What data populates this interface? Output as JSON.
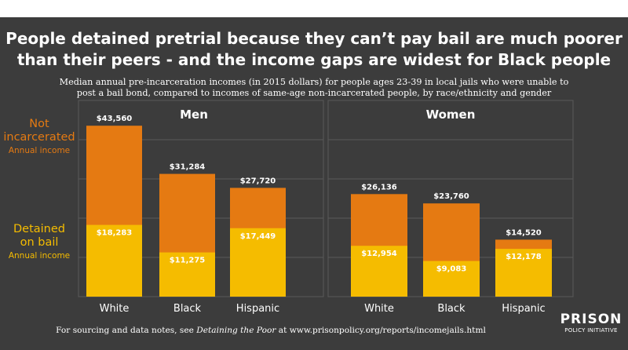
{
  "title_lines": [
    "People detained pretrial because they can’t pay bail are much poorer",
    "than their peers - and the income gaps are widest for Black people"
  ],
  "subtitle_lines": [
    "Median annual pre-incarceration incomes (in 2015 dollars) for people ages 23-39 in local jails who were unable to",
    "post a bail bond, compared to incomes of same-age non-incarcerated people, by race/ethnicity  and gender"
  ],
  "legend": {
    "not_incarcerated": {
      "line1": "Not",
      "line2": "incarcerated",
      "sub": "Annual income"
    },
    "detained": {
      "line1": "Detained",
      "line2": "on bail",
      "sub": "Annual income"
    }
  },
  "footnote": {
    "before": "For sourcing and data notes, see ",
    "italic": "Detaining the Poor",
    "after": " at www.prisonpolicy.org/reports/incomejails.html"
  },
  "logo": {
    "line1": "PRISON",
    "line2": "POLICY INITIATIVE"
  },
  "colors": {
    "not_incarcerated": "#e57a12",
    "detained": "#f5bc00",
    "background": "#3c3c3c",
    "text": "#ffffff"
  },
  "chart_data": {
    "type": "bar",
    "title": "People detained pretrial because they can’t pay bail are much poorer than their peers - and the income gaps are widest for Black people",
    "categories": [
      "White",
      "Black",
      "Hispanic"
    ],
    "ylabel": "Annual income",
    "ylim": [
      0,
      50000
    ],
    "grid": true,
    "legend_position": "left",
    "groups": [
      {
        "name": "Men",
        "series": [
          {
            "name": "Not incarcerated",
            "values": [
              43560,
              31284,
              27720
            ],
            "labels": [
              "$43,560",
              "$31,284",
              "$27,720"
            ]
          },
          {
            "name": "Detained on bail",
            "values": [
              18283,
              11275,
              17449
            ],
            "labels": [
              "$18,283",
              "$11,275",
              "$17,449"
            ]
          }
        ]
      },
      {
        "name": "Women",
        "series": [
          {
            "name": "Not incarcerated",
            "values": [
              26136,
              23760,
              14520
            ],
            "labels": [
              "$26,136",
              "$23,760",
              "$14,520"
            ]
          },
          {
            "name": "Detained on bail",
            "values": [
              12954,
              9083,
              12178
            ],
            "labels": [
              "$12,954",
              "$9,083",
              "$12,178"
            ]
          }
        ]
      }
    ]
  }
}
